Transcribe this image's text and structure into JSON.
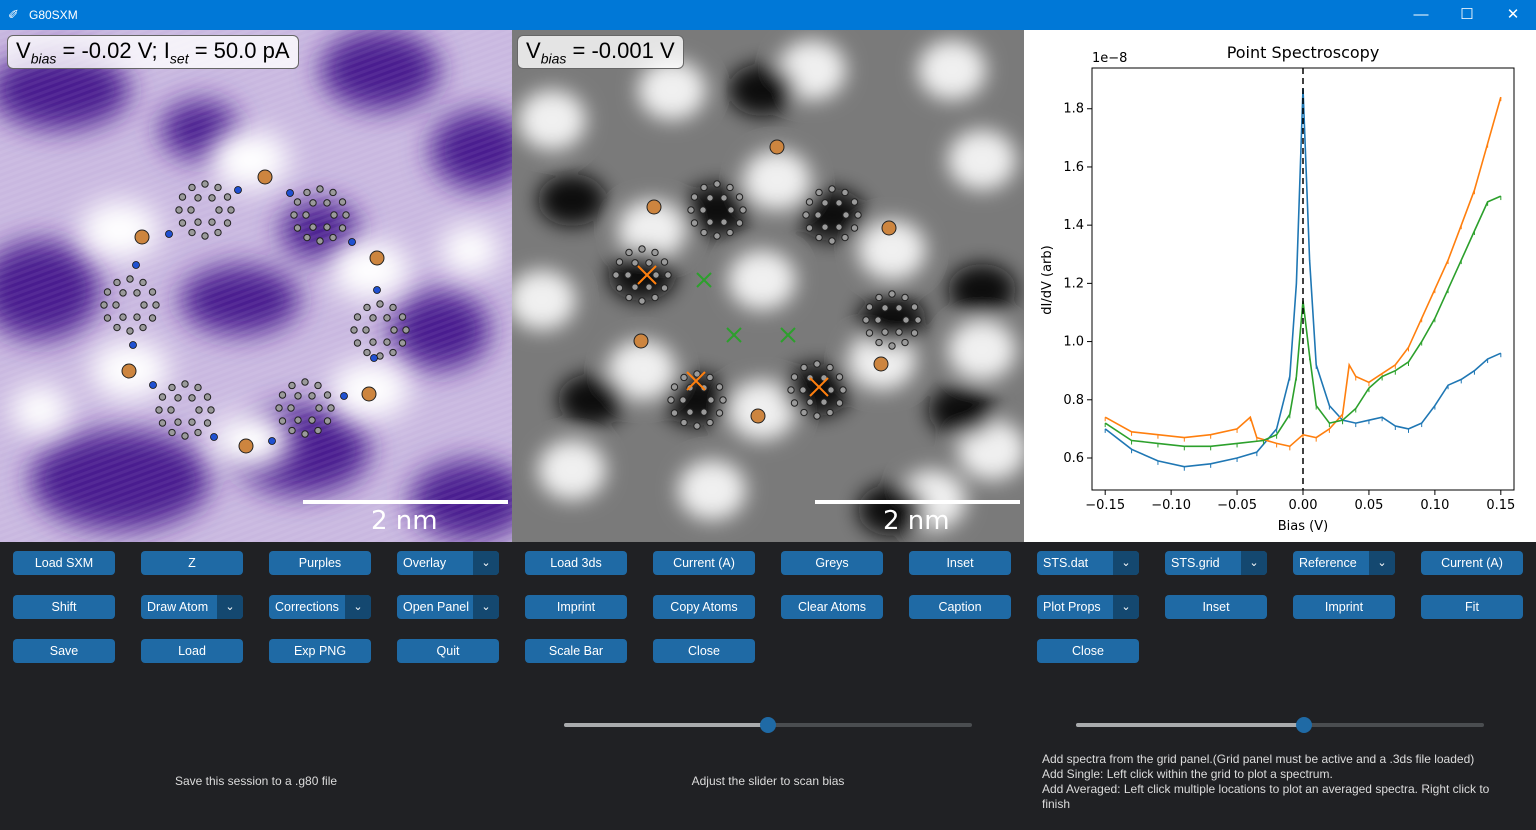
{
  "window": {
    "title": "G80SXM",
    "minimize": "—",
    "maximize": "☐",
    "close": "✕"
  },
  "panel1": {
    "label_v": "V",
    "label_vsub": "bias",
    "label_mid": " = -0.02 V; I",
    "label_isub": "set",
    "label_end": " = 50.0 pA",
    "scale_text": "2 nm",
    "colormap": "#4a1b8f"
  },
  "panel2": {
    "label_v": "V",
    "label_vsub": "bias",
    "label_end": " = -0.001 V",
    "scale_text": "2 nm"
  },
  "spectro": {
    "title": "Point Spectroscopy",
    "exponent": "1e−8",
    "xlabel": "Bias (V)",
    "ylabel": "dI/dV (arb)",
    "xticks": [
      "−0.15",
      "−0.10",
      "−0.05",
      "0.00",
      "0.05",
      "0.10",
      "0.15"
    ],
    "yticks": [
      "0.6",
      "0.8",
      "1.0",
      "1.2",
      "1.4",
      "1.6",
      "1.8"
    ]
  },
  "chart_data": {
    "type": "line",
    "title": "Point Spectroscopy",
    "xlabel": "Bias (V)",
    "ylabel": "dI/dV (arb)",
    "xlim": [
      -0.16,
      0.16
    ],
    "ylim": [
      0.49,
      1.94
    ],
    "y_multiplier": "1e-8",
    "vline_x": 0.0,
    "series": [
      {
        "color": "#1f77b4",
        "x": [
          -0.15,
          -0.13,
          -0.11,
          -0.09,
          -0.07,
          -0.05,
          -0.035,
          -0.02,
          -0.01,
          -0.005,
          0.0,
          0.005,
          0.01,
          0.02,
          0.03,
          0.04,
          0.05,
          0.06,
          0.07,
          0.08,
          0.09,
          0.1,
          0.11,
          0.12,
          0.13,
          0.14,
          0.15
        ],
        "y": [
          0.7,
          0.63,
          0.59,
          0.57,
          0.58,
          0.6,
          0.62,
          0.7,
          0.88,
          1.2,
          1.87,
          1.28,
          0.92,
          0.78,
          0.73,
          0.72,
          0.73,
          0.74,
          0.71,
          0.7,
          0.72,
          0.78,
          0.85,
          0.87,
          0.9,
          0.94,
          0.96
        ]
      },
      {
        "color": "#ff7f0e",
        "x": [
          -0.15,
          -0.13,
          -0.11,
          -0.09,
          -0.07,
          -0.05,
          -0.04,
          -0.035,
          -0.02,
          -0.01,
          0.0,
          0.01,
          0.02,
          0.03,
          0.035,
          0.04,
          0.05,
          0.06,
          0.07,
          0.08,
          0.09,
          0.1,
          0.11,
          0.12,
          0.13,
          0.14,
          0.15
        ],
        "y": [
          0.74,
          0.69,
          0.68,
          0.67,
          0.68,
          0.7,
          0.74,
          0.67,
          0.65,
          0.64,
          0.68,
          0.67,
          0.7,
          0.75,
          0.92,
          0.88,
          0.86,
          0.89,
          0.92,
          0.98,
          1.08,
          1.18,
          1.28,
          1.4,
          1.52,
          1.68,
          1.84
        ]
      },
      {
        "color": "#2ca02c",
        "x": [
          -0.15,
          -0.13,
          -0.11,
          -0.09,
          -0.07,
          -0.05,
          -0.03,
          -0.02,
          -0.01,
          -0.005,
          0.0,
          0.005,
          0.01,
          0.02,
          0.03,
          0.04,
          0.05,
          0.06,
          0.07,
          0.08,
          0.09,
          0.1,
          0.11,
          0.12,
          0.13,
          0.14,
          0.15
        ],
        "y": [
          0.72,
          0.66,
          0.65,
          0.64,
          0.64,
          0.65,
          0.66,
          0.68,
          0.75,
          0.88,
          1.14,
          0.95,
          0.78,
          0.72,
          0.73,
          0.77,
          0.84,
          0.88,
          0.9,
          0.93,
          1.0,
          1.08,
          1.18,
          1.28,
          1.38,
          1.48,
          1.5
        ]
      }
    ]
  },
  "buttons": {
    "load_sxm": "Load SXM",
    "z": "Z",
    "purples": "Purples",
    "overlay": "Overlay",
    "load_3ds": "Load 3ds",
    "current1": "Current (A)",
    "greys": "Greys",
    "inset1": "Inset",
    "sts_dat": "STS.dat",
    "sts_grid": "STS.grid",
    "reference": "Reference",
    "current2": "Current (A)",
    "shift": "Shift",
    "draw_atom": "Draw Atom",
    "corrections": "Corrections",
    "open_panel": "Open Panel",
    "imprint1": "Imprint",
    "copy_atoms": "Copy Atoms",
    "clear_atoms": "Clear Atoms",
    "caption": "Caption",
    "plot_props": "Plot Props",
    "inset2": "Inset",
    "imprint2": "Imprint",
    "fit": "Fit",
    "save": "Save",
    "load": "Load",
    "exp_png": "Exp PNG",
    "quit": "Quit",
    "scale_bar": "Scale Bar",
    "close1": "Close",
    "close2": "Close"
  },
  "sliders": {
    "bias_value": 0.5,
    "spectra_value": 0.56
  },
  "info": {
    "left": "Save this session to a .g80 file",
    "center": "Adjust the slider to scan bias",
    "right1": "Add spectra from the grid panel.(Grid panel must be active and a .3ds file loaded)",
    "right2": "Add Single: Left click within the grid to plot a spectrum.",
    "right3": "Add Averaged: Left click multiple locations to plot an averaged spectra. Right click to",
    "right4": "finish"
  }
}
